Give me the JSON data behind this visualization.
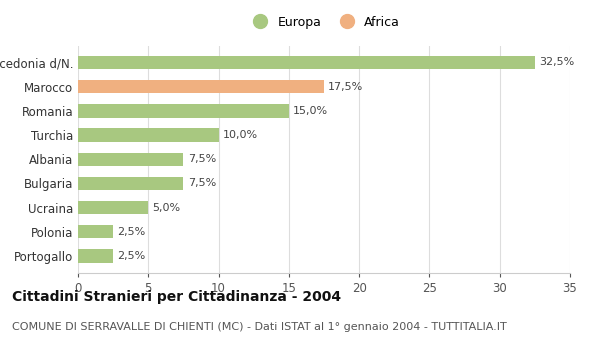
{
  "categories": [
    "Portogallo",
    "Polonia",
    "Ucraina",
    "Bulgaria",
    "Albania",
    "Turchia",
    "Romania",
    "Marocco",
    "Macedonia d/N."
  ],
  "values": [
    2.5,
    2.5,
    5.0,
    7.5,
    7.5,
    10.0,
    15.0,
    17.5,
    32.5
  ],
  "colors": [
    "#a8c880",
    "#a8c880",
    "#a8c880",
    "#a8c880",
    "#a8c880",
    "#a8c880",
    "#a8c880",
    "#f0b080",
    "#a8c880"
  ],
  "labels": [
    "2,5%",
    "2,5%",
    "5,0%",
    "7,5%",
    "7,5%",
    "10,0%",
    "15,0%",
    "17,5%",
    "32,5%"
  ],
  "europa_color": "#a8c880",
  "africa_color": "#f0b080",
  "xlim": [
    0,
    35
  ],
  "xticks": [
    0,
    5,
    10,
    15,
    20,
    25,
    30,
    35
  ],
  "title": "Cittadini Stranieri per Cittadinanza - 2004",
  "subtitle": "COMUNE DI SERRAVALLE DI CHIENTI (MC) - Dati ISTAT al 1° gennaio 2004 - TUTTITALIA.IT",
  "title_fontsize": 10,
  "subtitle_fontsize": 8,
  "background_color": "#ffffff",
  "grid_color": "#dddddd",
  "bar_height": 0.55
}
